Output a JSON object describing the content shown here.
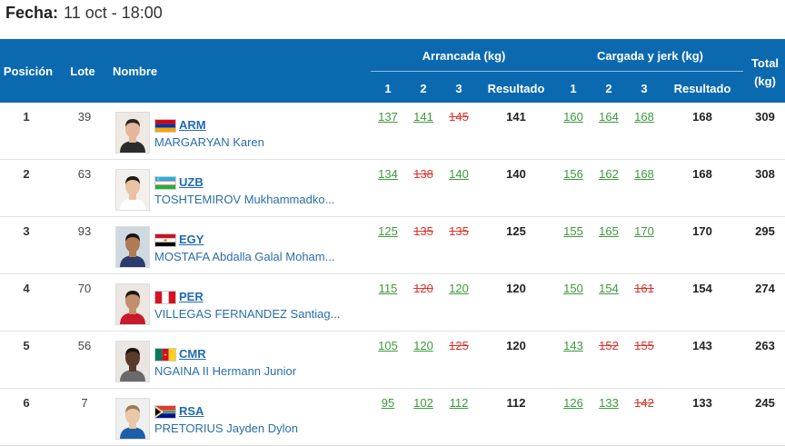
{
  "date_label": "Fecha:",
  "date_value": "11 oct - 18:00",
  "headers": {
    "position": "Posición",
    "lot": "Lote",
    "name": "Nombre",
    "snatch_group": "Arrancada (kg)",
    "cj_group": "Cargada y jerk (kg)",
    "total_line1": "Total",
    "total_line2": "(kg)",
    "a1": "1",
    "a2": "2",
    "a3": "3",
    "result": "Resultado"
  },
  "colors": {
    "header_bg": "#0b69b0",
    "good": "#3c9a3c",
    "fail": "#d9342b",
    "link": "#1f6bb0"
  },
  "rows": [
    {
      "position": "1",
      "lot": "39",
      "country": "ARM",
      "name": "MARGARYAN Karen",
      "flag_icon": "armenia-flag-icon",
      "snatch": [
        {
          "v": "137",
          "ok": true
        },
        {
          "v": "141",
          "ok": true
        },
        {
          "v": "145",
          "ok": false
        }
      ],
      "snatch_result": "141",
      "cj": [
        {
          "v": "160",
          "ok": true
        },
        {
          "v": "164",
          "ok": true
        },
        {
          "v": "168",
          "ok": true
        }
      ],
      "cj_result": "168",
      "total": "309"
    },
    {
      "position": "2",
      "lot": "63",
      "country": "UZB",
      "name": "TOSHTEMIROV Mukhammadko...",
      "flag_icon": "uzbekistan-flag-icon",
      "snatch": [
        {
          "v": "134",
          "ok": true
        },
        {
          "v": "138",
          "ok": false
        },
        {
          "v": "140",
          "ok": true
        }
      ],
      "snatch_result": "140",
      "cj": [
        {
          "v": "156",
          "ok": true
        },
        {
          "v": "162",
          "ok": true
        },
        {
          "v": "168",
          "ok": true
        }
      ],
      "cj_result": "168",
      "total": "308"
    },
    {
      "position": "3",
      "lot": "93",
      "country": "EGY",
      "name": "MOSTAFA Abdalla Galal Moham...",
      "flag_icon": "egypt-flag-icon",
      "snatch": [
        {
          "v": "125",
          "ok": true
        },
        {
          "v": "135",
          "ok": false
        },
        {
          "v": "135",
          "ok": false
        }
      ],
      "snatch_result": "125",
      "cj": [
        {
          "v": "155",
          "ok": true
        },
        {
          "v": "165",
          "ok": true
        },
        {
          "v": "170",
          "ok": true
        }
      ],
      "cj_result": "170",
      "total": "295"
    },
    {
      "position": "4",
      "lot": "70",
      "country": "PER",
      "name": "VILLEGAS FERNANDEZ Santiag...",
      "flag_icon": "peru-flag-icon",
      "snatch": [
        {
          "v": "115",
          "ok": true
        },
        {
          "v": "120",
          "ok": false
        },
        {
          "v": "120",
          "ok": true
        }
      ],
      "snatch_result": "120",
      "cj": [
        {
          "v": "150",
          "ok": true
        },
        {
          "v": "154",
          "ok": true
        },
        {
          "v": "161",
          "ok": false
        }
      ],
      "cj_result": "154",
      "total": "274"
    },
    {
      "position": "5",
      "lot": "56",
      "country": "CMR",
      "name": "NGAINA II Hermann Junior",
      "flag_icon": "cameroon-flag-icon",
      "snatch": [
        {
          "v": "105",
          "ok": true
        },
        {
          "v": "120",
          "ok": true
        },
        {
          "v": "125",
          "ok": false
        }
      ],
      "snatch_result": "120",
      "cj": [
        {
          "v": "143",
          "ok": true
        },
        {
          "v": "152",
          "ok": false
        },
        {
          "v": "155",
          "ok": false
        }
      ],
      "cj_result": "143",
      "total": "263"
    },
    {
      "position": "6",
      "lot": "7",
      "country": "RSA",
      "name": "PRETORIUS Jayden Dylon",
      "flag_icon": "south-africa-flag-icon",
      "snatch": [
        {
          "v": "95",
          "ok": true
        },
        {
          "v": "102",
          "ok": true
        },
        {
          "v": "112",
          "ok": true
        }
      ],
      "snatch_result": "112",
      "cj": [
        {
          "v": "126",
          "ok": true
        },
        {
          "v": "133",
          "ok": true
        },
        {
          "v": "142",
          "ok": false
        }
      ],
      "cj_result": "133",
      "total": "245"
    }
  ]
}
